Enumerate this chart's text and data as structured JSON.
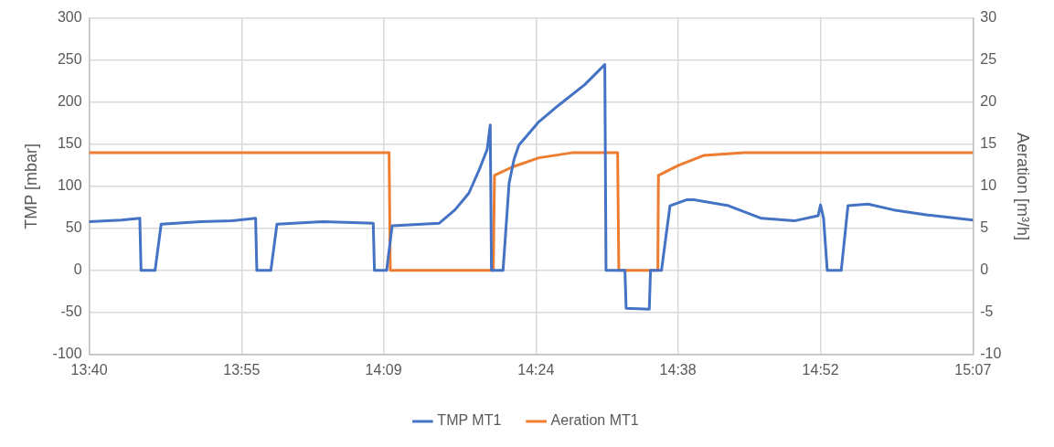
{
  "chart_data": {
    "type": "line",
    "xlabel": null,
    "ylabel": "TMP [mbar]",
    "y2label": "Aeration [m³/h]",
    "xlim": [
      13.667,
      15.117
    ],
    "xticks": [
      {
        "value": 13.667,
        "label": "13:40"
      },
      {
        "value": 13.917,
        "label": "13:55"
      },
      {
        "value": 14.15,
        "label": "14:09"
      },
      {
        "value": 14.4,
        "label": "14:24"
      },
      {
        "value": 14.633,
        "label": "14:38"
      },
      {
        "value": 14.867,
        "label": "14:52"
      },
      {
        "value": 15.117,
        "label": "15:07"
      }
    ],
    "ylim": [
      -100,
      300
    ],
    "yticks": [
      -100,
      -50,
      0,
      50,
      100,
      150,
      200,
      250,
      300
    ],
    "y2lim": [
      -10,
      30
    ],
    "y2ticks": [
      -10,
      -5,
      0,
      5,
      10,
      15,
      20,
      25,
      30
    ],
    "grid": true,
    "legend": "bottom",
    "marker": "none",
    "line_style": "solid",
    "series": [
      {
        "name": "TMP MT1",
        "color": "#4472c4",
        "x": [
          13.667,
          13.72,
          13.75,
          13.752,
          13.775,
          13.785,
          13.85,
          13.9,
          13.94,
          13.942,
          13.965,
          13.975,
          14.05,
          14.1,
          14.133,
          14.135,
          14.155,
          14.164,
          14.241,
          14.267,
          14.29,
          14.307,
          14.32,
          14.325,
          14.327,
          14.346,
          14.356,
          14.364,
          14.372,
          14.405,
          14.438,
          14.48,
          14.513,
          14.515,
          14.546,
          14.548,
          14.586,
          14.588,
          14.606,
          14.62,
          14.647,
          14.66,
          14.716,
          14.77,
          14.824,
          14.863,
          14.867,
          14.872,
          14.878,
          14.901,
          14.912,
          14.945,
          14.987,
          15.043,
          15.117
        ],
        "values": [
          58,
          60,
          62,
          0,
          0,
          55,
          58,
          59,
          62,
          0,
          0,
          55,
          58,
          57,
          56,
          0,
          0,
          53,
          56,
          72,
          92,
          120,
          144,
          173,
          0,
          0,
          104,
          132,
          149,
          177,
          197,
          221,
          245,
          0,
          0,
          -45,
          -46,
          0,
          0,
          77,
          84,
          84,
          77,
          62,
          59,
          65,
          78,
          62,
          0,
          0,
          77,
          79,
          72,
          66,
          60
        ]
      },
      {
        "name": "Aeration MT1",
        "color": "#ed7d31",
        "axis": "y2",
        "x": [
          13.667,
          14.159,
          14.161,
          14.33,
          14.332,
          14.361,
          14.405,
          14.459,
          14.534,
          14.536,
          14.6,
          14.601,
          14.634,
          14.676,
          14.742,
          15.117
        ],
        "values": [
          14,
          14,
          0,
          0,
          11.3,
          12.3,
          13.4,
          14,
          14,
          0,
          0,
          11.3,
          12.5,
          13.7,
          14,
          14
        ]
      }
    ]
  }
}
